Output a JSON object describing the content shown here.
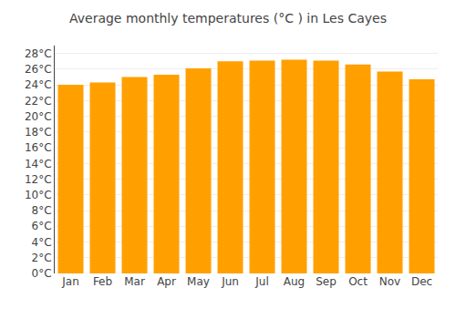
{
  "chart_data": {
    "type": "bar",
    "title": "Average monthly temperatures (°C ) in Les Cayes",
    "categories": [
      "Jan",
      "Feb",
      "Mar",
      "Apr",
      "May",
      "Jun",
      "Jul",
      "Aug",
      "Sep",
      "Oct",
      "Nov",
      "Dec"
    ],
    "values": [
      24.0,
      24.3,
      25.0,
      25.3,
      26.1,
      27.0,
      27.1,
      27.2,
      27.1,
      26.6,
      25.7,
      24.7
    ],
    "color": "#FFA000",
    "ylim": [
      0,
      29
    ],
    "yticks": [
      {
        "value": 0,
        "label": "0°C"
      },
      {
        "value": 2,
        "label": "2°C"
      },
      {
        "value": 4,
        "label": "4°C"
      },
      {
        "value": 6,
        "label": "6°C"
      },
      {
        "value": 8,
        "label": "8°C"
      },
      {
        "value": 10,
        "label": "10°C"
      },
      {
        "value": 12,
        "label": "12°C"
      },
      {
        "value": 14,
        "label": "14°C"
      },
      {
        "value": 16,
        "label": "16°C"
      },
      {
        "value": 18,
        "label": "18°C"
      },
      {
        "value": 20,
        "label": "20°C"
      },
      {
        "value": 22,
        "label": "22°C"
      },
      {
        "value": 24,
        "label": "24°C"
      },
      {
        "value": 26,
        "label": "26°C"
      },
      {
        "value": 28,
        "label": "28°C"
      }
    ],
    "grid": true
  }
}
